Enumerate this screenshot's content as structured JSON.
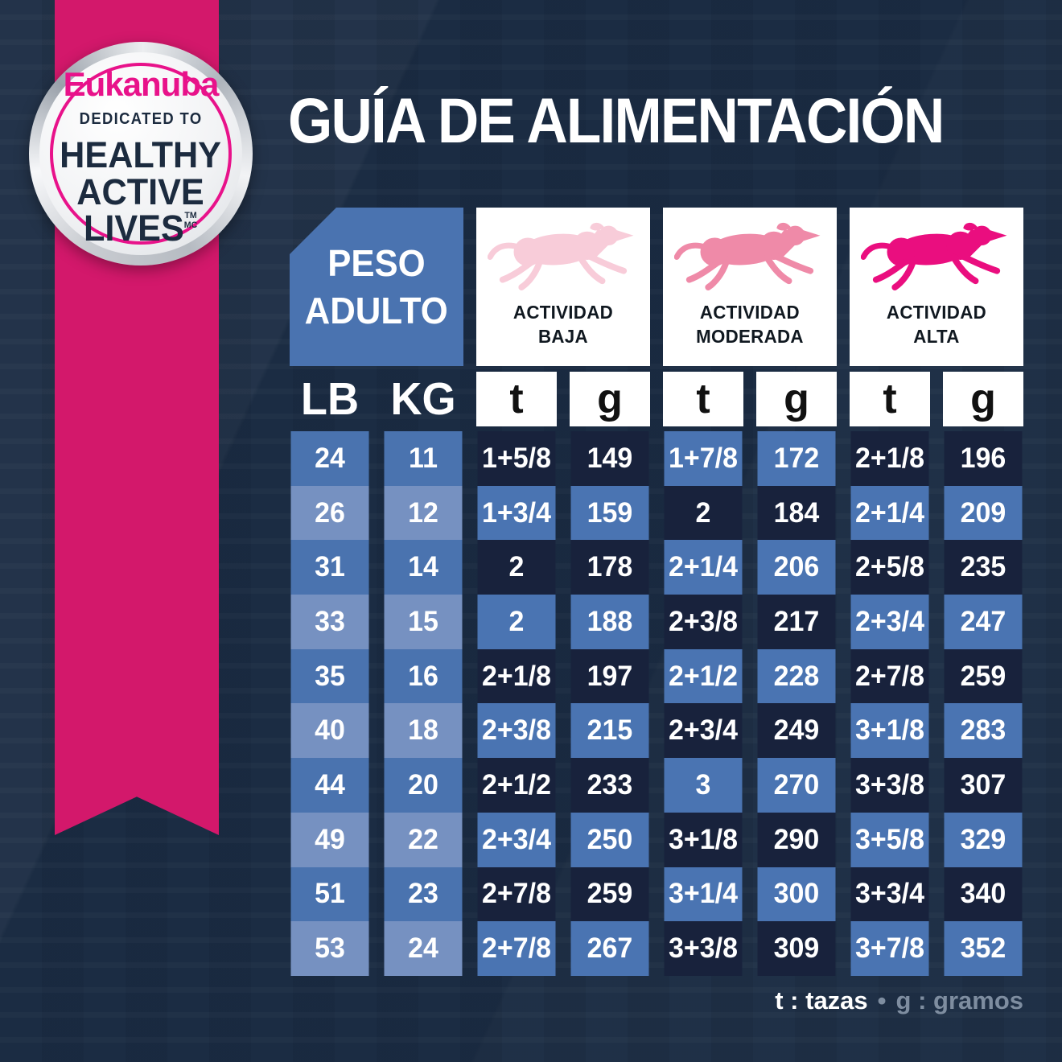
{
  "badge": {
    "brand": "Eukanuba",
    "tagline_top": "DEDICATED TO",
    "tagline_line1": "HEALTHY",
    "tagline_line2": "ACTIVE",
    "tagline_line3": "LIVES",
    "trademark": "TM",
    "trademark2": "MC"
  },
  "title": "GUÍA DE ALIMENTACIÓN",
  "table": {
    "corner_header": {
      "line1": "PESO",
      "line2": "ADULTO"
    },
    "activities": [
      {
        "line1": "ACTIVIDAD",
        "line2": "BAJA"
      },
      {
        "line1": "ACTIVIDAD",
        "line2": "MODERADA"
      },
      {
        "line1": "ACTIVIDAD",
        "line2": "ALTA"
      }
    ],
    "unit_headers": [
      "LB",
      "KG",
      "t",
      "g",
      "t",
      "g",
      "t",
      "g"
    ],
    "rows": [
      [
        "24",
        "11",
        "1+5/8",
        "149",
        "1+7/8",
        "172",
        "2+1/8",
        "196"
      ],
      [
        "26",
        "12",
        "1+3/4",
        "159",
        "2",
        "184",
        "2+1/4",
        "209"
      ],
      [
        "31",
        "14",
        "2",
        "178",
        "2+1/4",
        "206",
        "2+5/8",
        "235"
      ],
      [
        "33",
        "15",
        "2",
        "188",
        "2+3/8",
        "217",
        "2+3/4",
        "247"
      ],
      [
        "35",
        "16",
        "2+1/8",
        "197",
        "2+1/2",
        "228",
        "2+7/8",
        "259"
      ],
      [
        "40",
        "18",
        "2+3/8",
        "215",
        "2+3/4",
        "249",
        "3+1/8",
        "283"
      ],
      [
        "44",
        "20",
        "2+1/2",
        "233",
        "3",
        "270",
        "3+3/8",
        "307"
      ],
      [
        "49",
        "22",
        "2+3/4",
        "250",
        "3+1/8",
        "290",
        "3+5/8",
        "329"
      ],
      [
        "51",
        "23",
        "2+7/8",
        "259",
        "3+1/4",
        "300",
        "3+3/4",
        "340"
      ],
      [
        "53",
        "24",
        "2+7/8",
        "267",
        "3+3/8",
        "309",
        "3+7/8",
        "352"
      ]
    ]
  },
  "legend": {
    "t": "t : tazas",
    "separator": "•",
    "g": "g : gramos"
  },
  "colors": {
    "background": "#1b2c43",
    "ribbon_pink": "#d3186b",
    "brand_pink": "#e8128a",
    "badge_text_navy": "#1c2b3f",
    "header_blue": "#4a73b0",
    "cell_medium_blue": "#4a73af",
    "cell_light_blue": "#7691c1",
    "cell_dark_navy": "#18223c",
    "cell_blue": "#4a74b2",
    "dog_low": "#f8ccd9",
    "dog_moderate": "#ef8aa8",
    "dog_high": "#ea0e7f",
    "legend_gray": "#7e8da0"
  }
}
